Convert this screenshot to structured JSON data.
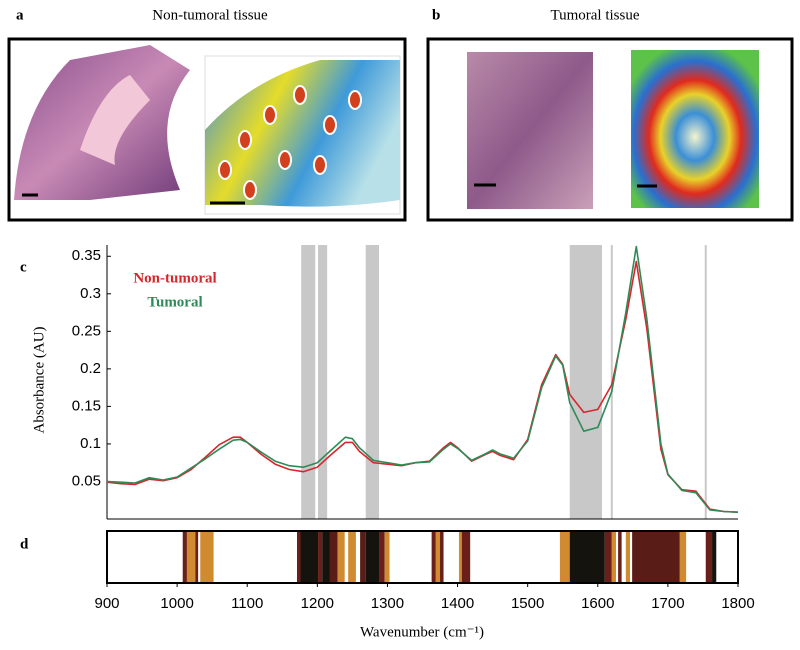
{
  "panels": [
    {
      "label": "a",
      "title": "Non-tumoral tissue"
    },
    {
      "label": "b",
      "title": "Tumoral tissue"
    }
  ],
  "chart_data": {
    "type": "line",
    "panel_label": "c",
    "ylabel": "Absorbance (AU)",
    "xlabel": "Wavenumber (cm⁻¹)",
    "xlim": [
      900,
      1800
    ],
    "ylim": [
      0,
      0.365
    ],
    "yticks": [
      0.05,
      0.1,
      0.15,
      0.2,
      0.25,
      0.3,
      0.35
    ],
    "xticks": [
      900,
      1000,
      1100,
      1200,
      1300,
      1400,
      1500,
      1600,
      1700,
      1800
    ],
    "x": [
      900,
      920,
      940,
      960,
      980,
      1000,
      1020,
      1040,
      1060,
      1080,
      1090,
      1100,
      1120,
      1140,
      1160,
      1180,
      1200,
      1220,
      1240,
      1250,
      1260,
      1280,
      1300,
      1320,
      1340,
      1360,
      1380,
      1390,
      1400,
      1420,
      1440,
      1450,
      1460,
      1480,
      1500,
      1520,
      1540,
      1550,
      1560,
      1580,
      1600,
      1620,
      1640,
      1655,
      1670,
      1690,
      1700,
      1720,
      1740,
      1760,
      1780,
      1800
    ],
    "series": [
      {
        "name": "Non-tumoral",
        "color": "#d7262d",
        "values": [
          0.049,
          0.047,
          0.046,
          0.053,
          0.051,
          0.055,
          0.066,
          0.082,
          0.099,
          0.109,
          0.109,
          0.102,
          0.086,
          0.073,
          0.066,
          0.063,
          0.069,
          0.086,
          0.102,
          0.102,
          0.09,
          0.075,
          0.073,
          0.071,
          0.075,
          0.077,
          0.095,
          0.102,
          0.095,
          0.077,
          0.086,
          0.09,
          0.085,
          0.079,
          0.106,
          0.179,
          0.219,
          0.206,
          0.166,
          0.142,
          0.146,
          0.179,
          0.266,
          0.343,
          0.253,
          0.093,
          0.059,
          0.039,
          0.037,
          0.013,
          0.01,
          0.009
        ]
      },
      {
        "name": "Tumoral",
        "color": "#2e8b57",
        "values": [
          0.05,
          0.049,
          0.048,
          0.055,
          0.052,
          0.056,
          0.068,
          0.08,
          0.093,
          0.105,
          0.106,
          0.102,
          0.089,
          0.077,
          0.071,
          0.069,
          0.075,
          0.092,
          0.109,
          0.107,
          0.095,
          0.078,
          0.075,
          0.072,
          0.075,
          0.076,
          0.093,
          0.1,
          0.094,
          0.078,
          0.087,
          0.092,
          0.087,
          0.081,
          0.104,
          0.175,
          0.217,
          0.205,
          0.155,
          0.117,
          0.122,
          0.17,
          0.275,
          0.363,
          0.266,
          0.1,
          0.06,
          0.038,
          0.035,
          0.012,
          0.01,
          0.009
        ]
      }
    ],
    "shaded_regions": [
      [
        1177,
        1197
      ],
      [
        1201,
        1214
      ],
      [
        1269,
        1288
      ],
      [
        1560,
        1606
      ]
    ],
    "vertical_lines": [
      1620,
      1754
    ],
    "barcode": {
      "panel_label": "d",
      "segments": [
        {
          "range": [
            1008,
            1014
          ],
          "color": "#6b1f1a"
        },
        {
          "range": [
            1014,
            1026
          ],
          "color": "#d08a30"
        },
        {
          "range": [
            1026,
            1030
          ],
          "color": "#6b1f1a"
        },
        {
          "range": [
            1033,
            1052
          ],
          "color": "#d08a30"
        },
        {
          "range": [
            1171,
            1176
          ],
          "color": "#6b1f1a"
        },
        {
          "range": [
            1176,
            1201
          ],
          "color": "#15130d"
        },
        {
          "range": [
            1201,
            1207
          ],
          "color": "#6b1f1a"
        },
        {
          "range": [
            1207,
            1218
          ],
          "color": "#15130d"
        },
        {
          "range": [
            1218,
            1229
          ],
          "color": "#5a1c16"
        },
        {
          "range": [
            1229,
            1239
          ],
          "color": "#d08a30"
        },
        {
          "range": [
            1244,
            1255
          ],
          "color": "#d08a30"
        },
        {
          "range": [
            1261,
            1269
          ],
          "color": "#5a1c16"
        },
        {
          "range": [
            1269,
            1289
          ],
          "color": "#15130d"
        },
        {
          "range": [
            1289,
            1296
          ],
          "color": "#6b1f1a"
        },
        {
          "range": [
            1296,
            1303
          ],
          "color": "#d08a30"
        },
        {
          "range": [
            1363,
            1369
          ],
          "color": "#6b1f1a"
        },
        {
          "range": [
            1369,
            1375
          ],
          "color": "#d08a30"
        },
        {
          "range": [
            1375,
            1380
          ],
          "color": "#6b1f1a"
        },
        {
          "range": [
            1402,
            1406
          ],
          "color": "#d08a30"
        },
        {
          "range": [
            1406,
            1418
          ],
          "color": "#6b1f1a"
        },
        {
          "range": [
            1546,
            1560
          ],
          "color": "#d08a30"
        },
        {
          "range": [
            1560,
            1610
          ],
          "color": "#15130d"
        },
        {
          "range": [
            1610,
            1620
          ],
          "color": "#6b1f1a"
        },
        {
          "range": [
            1620,
            1626
          ],
          "color": "#d08a30"
        },
        {
          "range": [
            1629,
            1634
          ],
          "color": "#6b1f1a"
        },
        {
          "range": [
            1640,
            1646
          ],
          "color": "#d08a30"
        },
        {
          "range": [
            1649,
            1717
          ],
          "color": "#5a1c16"
        },
        {
          "range": [
            1717,
            1726
          ],
          "color": "#d08a30"
        },
        {
          "range": [
            1754,
            1763
          ],
          "color": "#6b1f1a"
        },
        {
          "range": [
            1763,
            1769
          ],
          "color": "#15130d"
        }
      ]
    }
  }
}
